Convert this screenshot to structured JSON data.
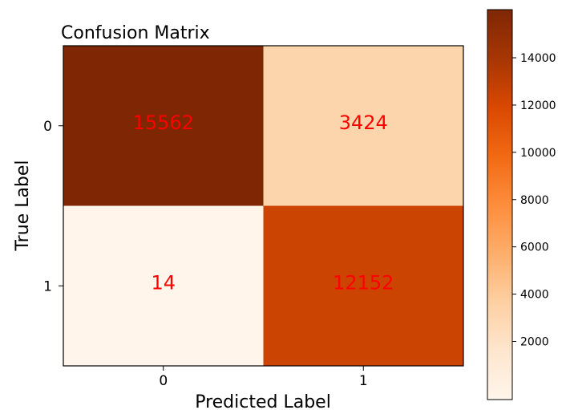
{
  "chart_data": {
    "type": "heatmap",
    "title": "Confusion Matrix",
    "xlabel": "Predicted Label",
    "ylabel": "True Label",
    "x_categories": [
      "0",
      "1"
    ],
    "y_categories": [
      "0",
      "1"
    ],
    "values": [
      [
        15562,
        3424
      ],
      [
        14,
        12152
      ]
    ],
    "value_label_color": "#ff0000",
    "colormap": "Oranges",
    "colorbar": {
      "range": [
        14,
        15562
      ],
      "ticks": [
        2000,
        4000,
        6000,
        8000,
        10000,
        12000,
        14000
      ]
    },
    "grid": false
  }
}
